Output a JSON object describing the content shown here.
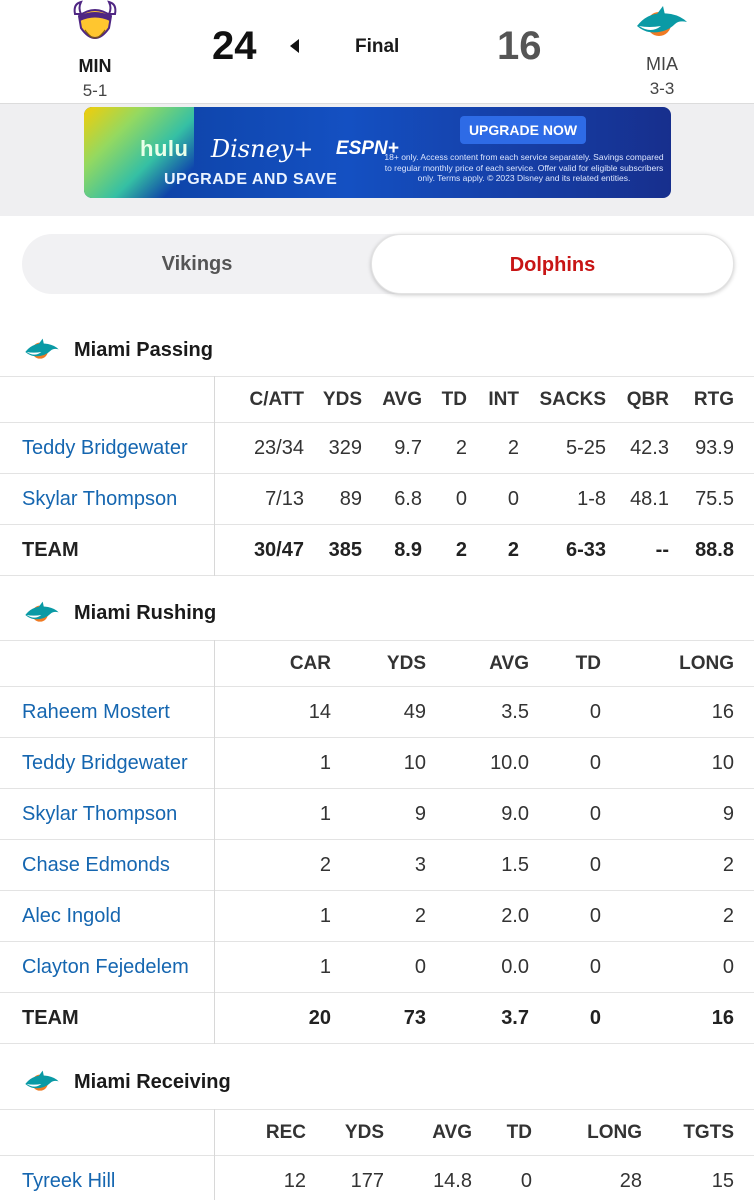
{
  "game": {
    "status": "Final",
    "away": {
      "abbr": "MIN",
      "record": "5-1",
      "score": "24"
    },
    "home": {
      "abbr": "MIA",
      "record": "3-3",
      "score": "16"
    }
  },
  "banner": {
    "brand_hulu": "hulu",
    "brand_disney": "Disney+",
    "brand_espn": "ESPN+",
    "tagline": "UPGRADE AND SAVE",
    "cta": "UPGRADE NOW",
    "fine_print": "18+ only. Access content from each service separately. Savings compared to regular monthly price of each service. Offer valid for eligible subscribers only. Terms apply. © 2023 Disney and its related entities."
  },
  "team_toggle": {
    "left": "Vikings",
    "right": "Dolphins"
  },
  "colors": {
    "accent_red": "#c81515",
    "link_blue": "#1566b0",
    "dolphins_aqua": "#0a9aa5",
    "dolphins_orange": "#f07a23",
    "vikings_purple": "#4f2683",
    "vikings_gold": "#ffc62f"
  },
  "passing": {
    "title": "Miami Passing",
    "columns": [
      "C/ATT",
      "YDS",
      "AVG",
      "TD",
      "INT",
      "SACKS",
      "QBR",
      "RTG"
    ],
    "rows": [
      {
        "name": "Teddy Bridgewater",
        "cells": [
          "23/34",
          "329",
          "9.7",
          "2",
          "2",
          "5-25",
          "42.3",
          "93.9"
        ]
      },
      {
        "name": "Skylar Thompson",
        "cells": [
          "7/13",
          "89",
          "6.8",
          "0",
          "0",
          "1-8",
          "48.1",
          "75.5"
        ]
      }
    ],
    "team": {
      "name": "TEAM",
      "cells": [
        "30/47",
        "385",
        "8.9",
        "2",
        "2",
        "6-33",
        "--",
        "88.8"
      ]
    }
  },
  "rushing": {
    "title": "Miami Rushing",
    "columns": [
      "CAR",
      "YDS",
      "AVG",
      "TD",
      "LONG"
    ],
    "rows": [
      {
        "name": "Raheem Mostert",
        "cells": [
          "14",
          "49",
          "3.5",
          "0",
          "16"
        ]
      },
      {
        "name": "Teddy Bridgewater",
        "cells": [
          "1",
          "10",
          "10.0",
          "0",
          "10"
        ]
      },
      {
        "name": "Skylar Thompson",
        "cells": [
          "1",
          "9",
          "9.0",
          "0",
          "9"
        ]
      },
      {
        "name": "Chase Edmonds",
        "cells": [
          "2",
          "3",
          "1.5",
          "0",
          "2"
        ]
      },
      {
        "name": "Alec Ingold",
        "cells": [
          "1",
          "2",
          "2.0",
          "0",
          "2"
        ]
      },
      {
        "name": "Clayton Fejedelem",
        "cells": [
          "1",
          "0",
          "0.0",
          "0",
          "0"
        ]
      }
    ],
    "team": {
      "name": "TEAM",
      "cells": [
        "20",
        "73",
        "3.7",
        "0",
        "16"
      ]
    }
  },
  "receiving": {
    "title": "Miami Receiving",
    "columns": [
      "REC",
      "YDS",
      "AVG",
      "TD",
      "LONG",
      "TGTS"
    ],
    "rows": [
      {
        "name": "Tyreek Hill",
        "cells": [
          "12",
          "177",
          "14.8",
          "0",
          "28",
          "15"
        ]
      }
    ]
  }
}
